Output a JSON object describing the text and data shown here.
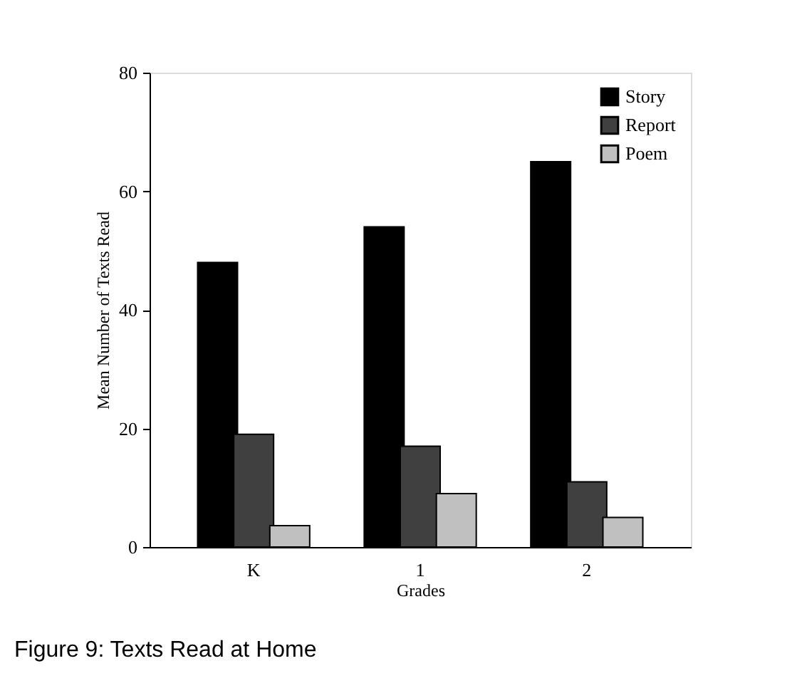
{
  "chart_data": {
    "type": "bar",
    "xlabel": "Grades",
    "ylabel": "Mean Number of Texts Read",
    "categories": [
      "K",
      "1",
      "2"
    ],
    "series": [
      {
        "name": "Story",
        "color": "#000000",
        "values": [
          48,
          54,
          65
        ]
      },
      {
        "name": "Report",
        "color": "#404040",
        "values": [
          19,
          17,
          11
        ]
      },
      {
        "name": "Poem",
        "color": "#c0c0c0",
        "values": [
          3.6,
          9,
          5
        ]
      }
    ],
    "ylim": [
      0,
      80
    ],
    "yticks": [
      0,
      20,
      40,
      60,
      80
    ],
    "grid": false,
    "legend": "top right",
    "annotations": [
      "Figure 9:  Texts Read at Home"
    ]
  }
}
